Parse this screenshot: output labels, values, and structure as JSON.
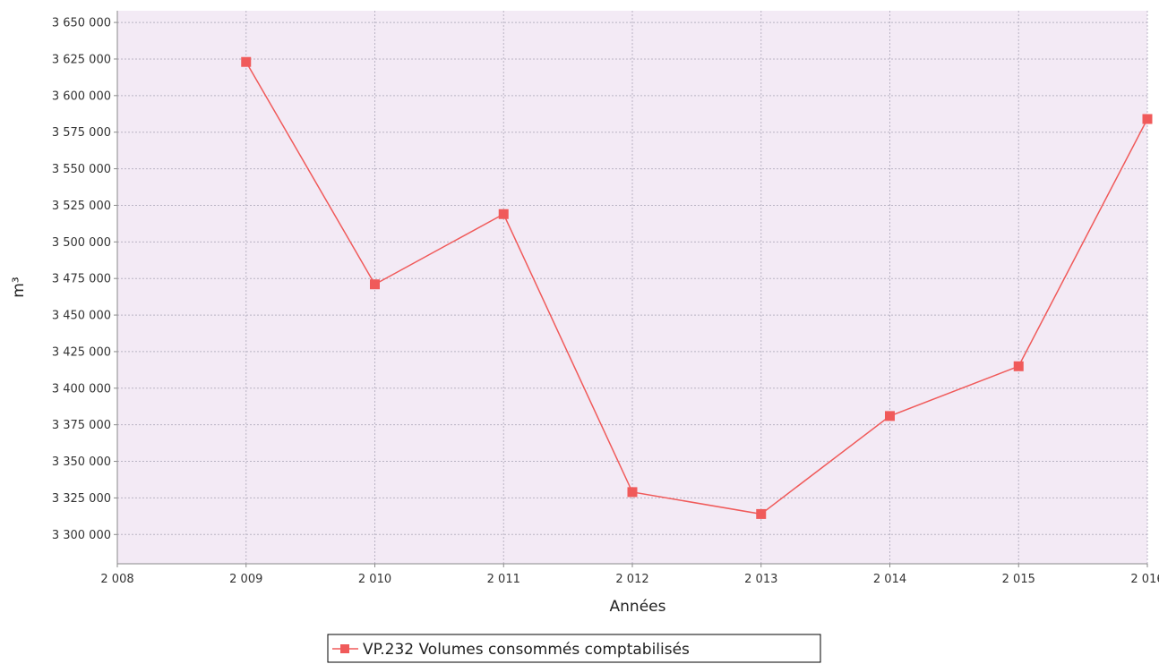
{
  "chart_data": {
    "type": "line",
    "title": "",
    "xlabel": "Années",
    "ylabel": "m³",
    "x": [
      2009,
      2010,
      2011,
      2012,
      2013,
      2014,
      2015,
      2016
    ],
    "x_ticks": [
      2008,
      2009,
      2010,
      2011,
      2012,
      2013,
      2014,
      2015,
      2016
    ],
    "x_tick_labels": [
      "2 008",
      "2 009",
      "2 010",
      "2 011",
      "2 012",
      "2 013",
      "2 014",
      "2 015",
      "2 016"
    ],
    "xlim": [
      2008,
      2016
    ],
    "ylim": [
      3280000,
      3658000
    ],
    "y_ticks": [
      3300000,
      3325000,
      3350000,
      3375000,
      3400000,
      3425000,
      3450000,
      3475000,
      3500000,
      3525000,
      3550000,
      3575000,
      3600000,
      3625000,
      3650000
    ],
    "y_tick_labels": [
      "3 300 000",
      "3 325 000",
      "3 350 000",
      "3 375 000",
      "3 400 000",
      "3 425 000",
      "3 450 000",
      "3 475 000",
      "3 500 000",
      "3 525 000",
      "3 550 000",
      "3 575 000",
      "3 600 000",
      "3 625 000",
      "3 650 000"
    ],
    "grid": true,
    "legend_position": "bottom-center",
    "series": [
      {
        "name": "VP.232 Volumes consommés comptabilisés",
        "color": "#f05a5a",
        "marker": "square",
        "values": [
          3623000,
          3471000,
          3519000,
          3329000,
          3314000,
          3381000,
          3415000,
          3584000
        ]
      }
    ],
    "colors": {
      "plot_background": "#f3eaf5",
      "grid": "#b9b3c4",
      "axis": "#8a8a8a"
    }
  }
}
